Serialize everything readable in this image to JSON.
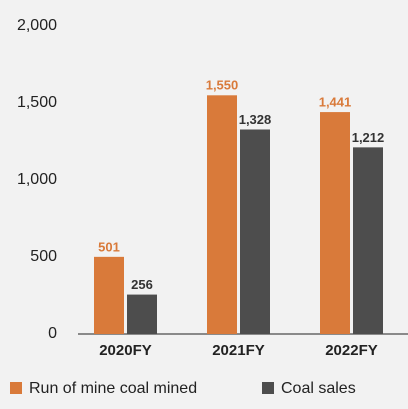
{
  "chart_data": {
    "type": "bar",
    "categories": [
      "2020FY",
      "2021FY",
      "2022FY"
    ],
    "series": [
      {
        "name": "Run of mine coal mined",
        "color": "#d97a3a",
        "values": [
          501,
          1550,
          1441
        ],
        "value_labels": [
          "501",
          "1,550",
          "1,441"
        ]
      },
      {
        "name": "Coal sales",
        "color": "#4d4d4d",
        "values": [
          256,
          1328,
          1212
        ],
        "value_labels": [
          "256",
          "1,328",
          "1,212"
        ]
      }
    ],
    "ylim": [
      0,
      2000
    ],
    "yticks": [
      0,
      500,
      {
        "value": 1000,
        "label": "1,000"
      },
      {
        "value": 1500,
        "label": "1,500"
      },
      {
        "value": 2000,
        "label": "2,000"
      }
    ],
    "grid": false,
    "legend": "bottom"
  }
}
